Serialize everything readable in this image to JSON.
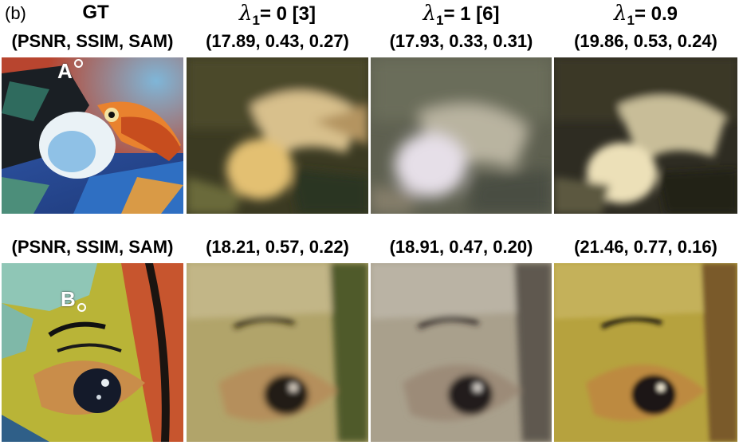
{
  "panel_label": "(b)",
  "columns": [
    {
      "title_text": "GT"
    },
    {
      "lambda_symbol": "λ",
      "sub": "1",
      "value_text": "= 0 [3]"
    },
    {
      "lambda_symbol": "λ",
      "sub": "1",
      "value_text": "= 1 [6]"
    },
    {
      "lambda_symbol": "λ",
      "sub": "1",
      "value_text": "= 0.9"
    }
  ],
  "row1": {
    "metrics": [
      "(PSNR, SSIM, SAM)",
      "(17.89, 0.43, 0.27)",
      "(17.93, 0.33, 0.31)",
      "(19.86, 0.53, 0.24)"
    ],
    "marker": "A"
  },
  "row2": {
    "metrics": [
      "(PSNR, SSIM, SAM)",
      "(18.21, 0.57, 0.22)",
      "(18.91, 0.47, 0.20)",
      "(21.46, 0.77, 0.16)"
    ],
    "marker": "B"
  }
}
